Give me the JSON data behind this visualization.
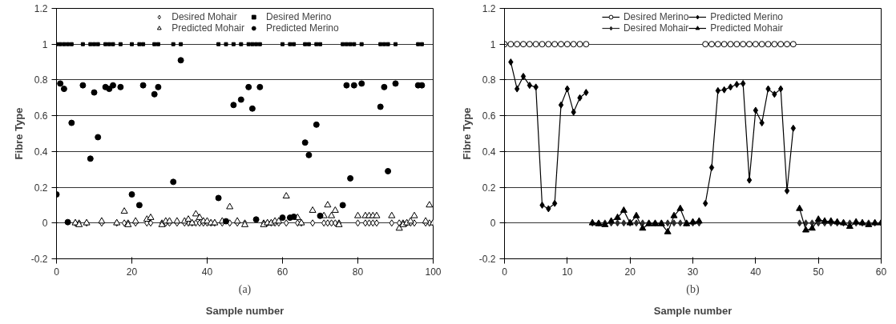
{
  "chart_data": [
    {
      "type": "scatter",
      "xlabel": "Sample number",
      "ylabel": "Fibre Type",
      "annotations": [
        "(a)"
      ],
      "xlim": [
        0,
        100
      ],
      "xticks": [
        0,
        20,
        40,
        60,
        80,
        100
      ],
      "ylim": [
        -0.2,
        1.2
      ],
      "yticks": [
        -0.2,
        0,
        0.2,
        0.4,
        0.6,
        0.8,
        1,
        1.2
      ],
      "grid": "y",
      "legend": "top",
      "series": [
        {
          "name": "Desired Mohair",
          "color": "#000000",
          "marker": "diamond",
          "x": [
            5,
            6,
            8,
            12,
            16,
            18,
            19,
            21,
            24,
            25,
            28,
            29,
            30,
            32,
            34,
            35,
            36,
            37,
            38,
            39,
            40,
            41,
            42,
            44,
            46,
            48,
            50,
            55,
            56,
            57,
            58,
            59,
            61,
            64,
            65,
            68,
            71,
            72,
            73,
            74,
            75,
            80,
            82,
            83,
            84,
            85,
            89,
            91,
            92,
            93,
            94,
            95,
            98,
            99,
            100
          ],
          "values": [
            0,
            0,
            0,
            0,
            0,
            0,
            0,
            0,
            0,
            0,
            0,
            0,
            0,
            0,
            0,
            0,
            0,
            0,
            0,
            0,
            0,
            0,
            0,
            0,
            0,
            0,
            0,
            0,
            0,
            0,
            0,
            0,
            0,
            0,
            0,
            0,
            0,
            0,
            0,
            0,
            0,
            0,
            0,
            0,
            0,
            0,
            0,
            0,
            0,
            0,
            0,
            0,
            0,
            0,
            0
          ]
        },
        {
          "name": "Predicted Mohair",
          "color": "#000000",
          "marker": "triangle",
          "x": [
            5,
            6,
            8,
            12,
            16,
            18,
            19,
            21,
            24,
            25,
            28,
            29,
            30,
            32,
            34,
            35,
            36,
            37,
            38,
            39,
            40,
            41,
            42,
            44,
            46,
            48,
            50,
            55,
            56,
            57,
            58,
            59,
            61,
            64,
            65,
            68,
            71,
            72,
            73,
            74,
            75,
            80,
            82,
            83,
            84,
            85,
            89,
            91,
            92,
            93,
            94,
            95,
            98,
            99,
            100
          ],
          "values": [
            0.0,
            -0.01,
            0.0,
            0.01,
            0.0,
            0.065,
            -0.01,
            0.01,
            0.02,
            0.03,
            -0.01,
            0.01,
            0.01,
            0.01,
            0.01,
            0.02,
            0.0,
            0.05,
            0.03,
            0.01,
            0.01,
            0.0,
            0.0,
            0.01,
            0.09,
            0.01,
            -0.01,
            -0.01,
            0.0,
            0.0,
            0.01,
            0.01,
            0.15,
            0.03,
            0.0,
            0.07,
            0.04,
            0.1,
            0.04,
            0.07,
            -0.01,
            0.04,
            0.04,
            0.04,
            0.04,
            0.04,
            0.04,
            -0.03,
            -0.01,
            0.0,
            0.01,
            0.04,
            0.01,
            0.1,
            0.0
          ]
        },
        {
          "name": "Desired Merino",
          "color": "#000000",
          "marker": "square",
          "x": [
            0,
            1,
            2,
            3,
            4,
            7,
            9,
            10,
            11,
            13,
            14,
            15,
            17,
            20,
            22,
            23,
            26,
            27,
            31,
            33,
            43,
            45,
            47,
            49,
            51,
            52,
            53,
            54,
            60,
            62,
            63,
            66,
            67,
            69,
            70,
            76,
            77,
            78,
            79,
            81,
            86,
            87,
            88,
            90,
            96,
            97
          ],
          "values": [
            1,
            1,
            1,
            1,
            1,
            1,
            1,
            1,
            1,
            1,
            1,
            1,
            1,
            1,
            1,
            1,
            1,
            1,
            1,
            1,
            1,
            1,
            1,
            1,
            1,
            1,
            1,
            1,
            1,
            1,
            1,
            1,
            1,
            1,
            1,
            1,
            1,
            1,
            1,
            1,
            1,
            1,
            1,
            1,
            1,
            1
          ]
        },
        {
          "name": "Predicted Merino",
          "color": "#000000",
          "marker": "circle",
          "x": [
            0,
            1,
            2,
            3,
            4,
            7,
            9,
            10,
            11,
            13,
            14,
            15,
            17,
            20,
            22,
            23,
            26,
            27,
            31,
            33,
            43,
            45,
            47,
            49,
            51,
            52,
            53,
            54,
            60,
            62,
            63,
            66,
            67,
            69,
            70,
            76,
            77,
            78,
            79,
            81,
            86,
            87,
            88,
            90,
            96,
            97
          ],
          "values": [
            0.16,
            0.78,
            0.75,
            0.005,
            0.56,
            0.77,
            0.36,
            0.73,
            0.48,
            0.76,
            0.75,
            0.77,
            0.76,
            0.16,
            0.1,
            0.77,
            0.72,
            0.76,
            0.23,
            0.91,
            0.14,
            0.01,
            0.66,
            0.69,
            0.76,
            0.64,
            0.02,
            0.76,
            0.03,
            0.03,
            0.035,
            0.45,
            0.38,
            0.55,
            0.04,
            0.1,
            0.77,
            0.25,
            0.77,
            0.78,
            0.65,
            0.76,
            0.29,
            0.78,
            0.77,
            0.77
          ]
        }
      ]
    },
    {
      "type": "line",
      "xlabel": "Sample number",
      "ylabel": "Fibre Type",
      "annotations": [
        "(b)"
      ],
      "xlim": [
        0,
        60
      ],
      "xticks": [
        0,
        10,
        20,
        30,
        40,
        50,
        60
      ],
      "ylim": [
        -0.2,
        1.2
      ],
      "yticks": [
        -0.2,
        0,
        0.2,
        0.4,
        0.6,
        0.8,
        1,
        1.2
      ],
      "grid": "y",
      "legend": "top",
      "series": [
        {
          "name": "Desired Merino",
          "color": "#000000",
          "marker": "circle",
          "x": [
            0,
            1,
            2,
            3,
            4,
            5,
            6,
            7,
            8,
            9,
            10,
            11,
            12,
            13,
            14,
            31,
            32,
            33,
            34,
            35,
            36,
            37,
            38,
            39,
            40,
            41,
            42,
            43,
            44,
            45,
            46
          ],
          "values": [
            1,
            1,
            1,
            1,
            1,
            1,
            1,
            1,
            1,
            1,
            1,
            1,
            1,
            1,
            null,
            null,
            1,
            1,
            1,
            1,
            1,
            1,
            1,
            1,
            1,
            1,
            1,
            1,
            1,
            1,
            1
          ]
        },
        {
          "name": "Desired Mohair",
          "color": "#2a2a2a",
          "marker": "diamond",
          "x": [
            14,
            15,
            16,
            17,
            18,
            19,
            20,
            21,
            22,
            23,
            24,
            25,
            26,
            27,
            28,
            29,
            30,
            31,
            46,
            47,
            48,
            49,
            50,
            51,
            52,
            53,
            54,
            55,
            56,
            57,
            58,
            59,
            60
          ],
          "values": [
            0,
            0,
            0,
            0,
            0,
            0,
            0,
            0,
            0,
            0,
            0,
            0,
            0,
            0,
            0,
            0,
            0,
            0,
            null,
            0,
            0,
            0,
            0,
            0,
            0,
            0,
            0,
            0,
            0,
            0,
            0,
            0,
            0
          ]
        },
        {
          "name": "Predicted Merino",
          "color": "#000000",
          "marker": "diamond",
          "x": [
            1,
            2,
            3,
            4,
            5,
            6,
            7,
            8,
            9,
            10,
            11,
            12,
            13,
            14,
            31,
            32,
            33,
            34,
            35,
            36,
            37,
            38,
            39,
            40,
            41,
            42,
            43,
            44,
            45,
            46
          ],
          "values": [
            0.9,
            0.75,
            0.82,
            0.77,
            0.76,
            0.1,
            0.08,
            0.11,
            0.66,
            0.75,
            0.62,
            0.7,
            0.73,
            null,
            null,
            0.11,
            0.31,
            0.74,
            0.745,
            0.76,
            0.775,
            0.78,
            0.24,
            0.63,
            0.56,
            0.75,
            0.72,
            0.75,
            0.18,
            0.53
          ]
        },
        {
          "name": "Predicted Mohair",
          "color": "#000000",
          "marker": "triangle",
          "x": [
            14,
            15,
            16,
            17,
            18,
            19,
            20,
            21,
            22,
            23,
            24,
            25,
            26,
            27,
            28,
            29,
            30,
            31,
            46,
            47,
            48,
            49,
            50,
            51,
            52,
            53,
            54,
            55,
            56,
            57,
            58,
            59,
            60
          ],
          "values": [
            0.0,
            -0.005,
            -0.01,
            0.01,
            0.03,
            0.07,
            0.0,
            0.04,
            -0.03,
            -0.005,
            -0.005,
            -0.005,
            -0.05,
            0.04,
            0.08,
            -0.005,
            0.005,
            0.01,
            null,
            0.08,
            -0.04,
            -0.03,
            0.02,
            0.01,
            0.01,
            0.005,
            0.0,
            -0.02,
            0.005,
            0.0,
            -0.01,
            0.0,
            0.0
          ]
        }
      ]
    }
  ]
}
